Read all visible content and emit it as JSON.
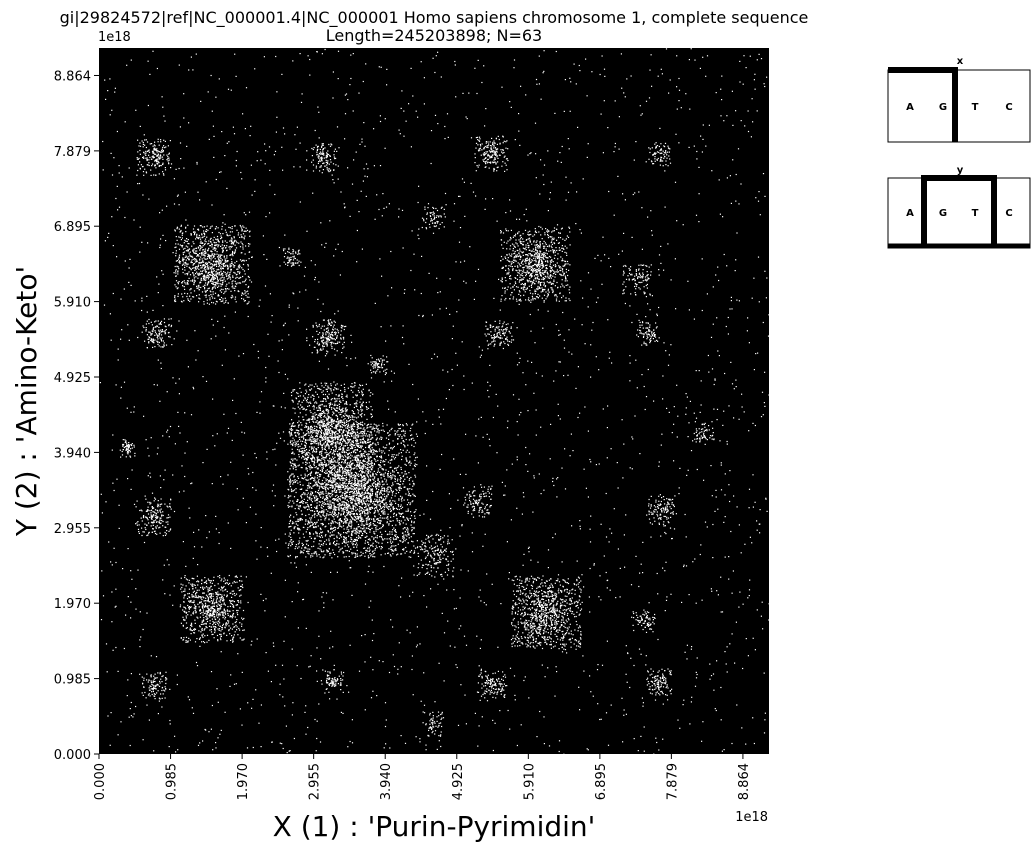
{
  "chart_data": {
    "type": "scatter",
    "title": "gi|29824572|ref|NC_000001.4|NC_000001 Homo sapiens chromosome 1, complete sequence",
    "subtitle": "Length=245203898; N=63",
    "xlabel": "X (1) : 'Purin-Pyrimidin'",
    "ylabel": "Y (2) : 'Amino-Keto'",
    "x_exponent_label": "1e18",
    "y_exponent_label": "1e18",
    "xlim": [
      0,
      9.223
    ],
    "ylim": [
      0,
      9.223
    ],
    "x_ticks": [
      "0.000",
      "0.985",
      "1.970",
      "2.955",
      "3.940",
      "4.925",
      "5.910",
      "6.895",
      "7.879",
      "8.864"
    ],
    "y_ticks": [
      "0.000",
      "0.985",
      "1.970",
      "2.955",
      "3.940",
      "4.925",
      "5.910",
      "6.895",
      "7.879",
      "8.864"
    ],
    "x_tick_values": [
      0,
      0.985,
      1.97,
      2.955,
      3.94,
      4.925,
      5.91,
      6.895,
      7.879,
      8.864
    ],
    "y_tick_values": [
      0,
      0.985,
      1.97,
      2.955,
      3.94,
      4.925,
      5.91,
      6.895,
      7.879,
      8.864
    ],
    "background_color": "#000000",
    "point_color": "#ffffff",
    "grid": false,
    "legend_panels": [
      {
        "title": "x",
        "letters": [
          "A",
          "G",
          "T",
          "C"
        ],
        "highlight": "T-C pair separated by thick bar"
      },
      {
        "title": "y",
        "letters": [
          "A",
          "G",
          "T",
          "C"
        ],
        "highlight": "G-T pair boxed"
      }
    ],
    "clusters": [
      {
        "x": 3.47,
        "y": 3.45,
        "size": 1.1,
        "density": 1.0
      },
      {
        "x": 3.2,
        "y": 4.3,
        "size": 0.7,
        "density": 0.8
      },
      {
        "x": 1.55,
        "y": 6.4,
        "size": 0.65,
        "density": 0.9
      },
      {
        "x": 6.0,
        "y": 6.4,
        "size": 0.6,
        "density": 0.85
      },
      {
        "x": 6.15,
        "y": 1.85,
        "size": 0.6,
        "density": 0.85
      },
      {
        "x": 1.55,
        "y": 1.9,
        "size": 0.55,
        "density": 0.8
      },
      {
        "x": 4.6,
        "y": 2.6,
        "size": 0.35,
        "density": 0.4
      },
      {
        "x": 0.75,
        "y": 7.8,
        "size": 0.3,
        "density": 0.6
      },
      {
        "x": 5.4,
        "y": 7.85,
        "size": 0.3,
        "density": 0.55
      },
      {
        "x": 3.1,
        "y": 7.8,
        "size": 0.25,
        "density": 0.45
      },
      {
        "x": 0.8,
        "y": 5.5,
        "size": 0.25,
        "density": 0.5
      },
      {
        "x": 3.15,
        "y": 5.45,
        "size": 0.3,
        "density": 0.55
      },
      {
        "x": 5.5,
        "y": 5.5,
        "size": 0.25,
        "density": 0.45
      },
      {
        "x": 7.4,
        "y": 6.2,
        "size": 0.25,
        "density": 0.35
      },
      {
        "x": 0.75,
        "y": 3.1,
        "size": 0.3,
        "density": 0.55
      },
      {
        "x": 7.75,
        "y": 3.2,
        "size": 0.25,
        "density": 0.45
      },
      {
        "x": 5.2,
        "y": 3.3,
        "size": 0.25,
        "density": 0.4
      },
      {
        "x": 0.75,
        "y": 0.9,
        "size": 0.22,
        "density": 0.45
      },
      {
        "x": 5.4,
        "y": 0.9,
        "size": 0.25,
        "density": 0.5
      },
      {
        "x": 7.7,
        "y": 0.95,
        "size": 0.22,
        "density": 0.55
      },
      {
        "x": 3.2,
        "y": 0.95,
        "size": 0.2,
        "density": 0.35
      },
      {
        "x": 7.5,
        "y": 1.75,
        "size": 0.2,
        "density": 0.3
      },
      {
        "x": 7.55,
        "y": 5.5,
        "size": 0.2,
        "density": 0.35
      },
      {
        "x": 7.7,
        "y": 7.85,
        "size": 0.2,
        "density": 0.35
      },
      {
        "x": 0.4,
        "y": 4.0,
        "size": 0.15,
        "density": 0.35
      },
      {
        "x": 3.85,
        "y": 5.1,
        "size": 0.15,
        "density": 0.3
      },
      {
        "x": 2.65,
        "y": 6.5,
        "size": 0.15,
        "density": 0.3
      },
      {
        "x": 8.3,
        "y": 4.2,
        "size": 0.2,
        "density": 0.2
      },
      {
        "x": 4.6,
        "y": 7.0,
        "size": 0.2,
        "density": 0.2
      },
      {
        "x": 4.6,
        "y": 0.4,
        "size": 0.2,
        "density": 0.2
      }
    ]
  }
}
